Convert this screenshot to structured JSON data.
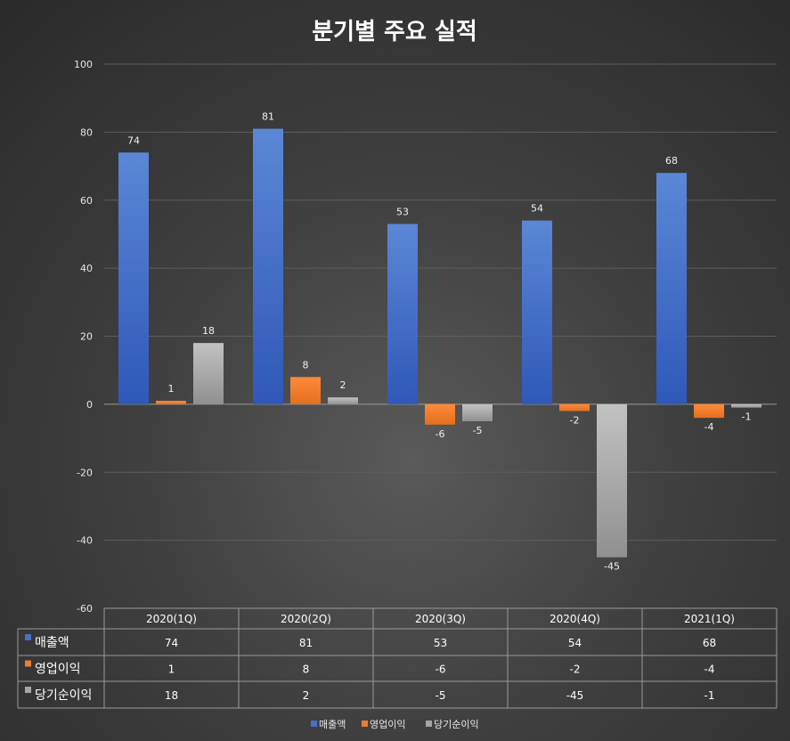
{
  "chart_data": {
    "type": "bar",
    "title": "분기별 주요 실적",
    "categories": [
      "2020(1Q)",
      "2020(2Q)",
      "2020(3Q)",
      "2020(4Q)",
      "2021(1Q)"
    ],
    "series": [
      {
        "name": "매출액",
        "color": "#4472c4",
        "values": [
          74,
          81,
          53,
          54,
          68
        ]
      },
      {
        "name": "영업이익",
        "color": "#ed7d31",
        "values": [
          1,
          8,
          -6,
          -2,
          -4
        ]
      },
      {
        "name": "당기순이익",
        "color": "#a5a5a5",
        "values": [
          18,
          2,
          -5,
          -45,
          -1
        ]
      }
    ],
    "ylim": [
      -60,
      100
    ],
    "yticks": [
      100,
      80,
      60,
      40,
      20,
      0,
      -20,
      -40,
      -60
    ],
    "grid": true,
    "data_table": true,
    "legend_position": "bottom"
  }
}
